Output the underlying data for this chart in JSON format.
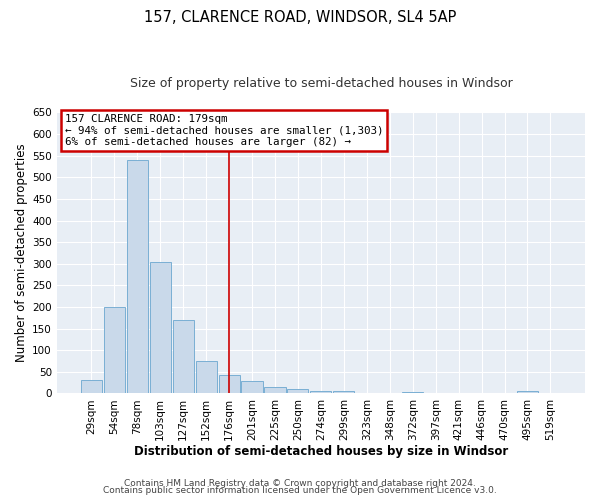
{
  "title": "157, CLARENCE ROAD, WINDSOR, SL4 5AP",
  "subtitle": "Size of property relative to semi-detached houses in Windsor",
  "xlabel": "Distribution of semi-detached houses by size in Windsor",
  "ylabel": "Number of semi-detached properties",
  "bar_labels": [
    "29sqm",
    "54sqm",
    "78sqm",
    "103sqm",
    "127sqm",
    "152sqm",
    "176sqm",
    "201sqm",
    "225sqm",
    "250sqm",
    "274sqm",
    "299sqm",
    "323sqm",
    "348sqm",
    "372sqm",
    "397sqm",
    "421sqm",
    "446sqm",
    "470sqm",
    "495sqm",
    "519sqm"
  ],
  "bar_values": [
    30,
    200,
    540,
    305,
    170,
    75,
    42,
    28,
    15,
    10,
    6,
    5,
    0,
    0,
    4,
    0,
    0,
    0,
    0,
    5,
    0
  ],
  "bar_color": "#c9d9ea",
  "bar_edgecolor": "#7aafd4",
  "ylim": [
    0,
    650
  ],
  "yticks": [
    0,
    50,
    100,
    150,
    200,
    250,
    300,
    350,
    400,
    450,
    500,
    550,
    600,
    650
  ],
  "vline_x_index": 6,
  "vline_color": "#cc0000",
  "annotation_title": "157 CLARENCE ROAD: 179sqm",
  "annotation_line1": "← 94% of semi-detached houses are smaller (1,303)",
  "annotation_line2": "6% of semi-detached houses are larger (82) →",
  "annotation_box_color": "#cc0000",
  "footer1": "Contains HM Land Registry data © Crown copyright and database right 2024.",
  "footer2": "Contains public sector information licensed under the Open Government Licence v3.0.",
  "bg_color": "#ffffff",
  "plot_bg_color": "#e8eef5",
  "grid_color": "#ffffff",
  "title_fontsize": 10.5,
  "subtitle_fontsize": 9,
  "axis_label_fontsize": 8.5,
  "tick_fontsize": 7.5,
  "footer_fontsize": 6.5
}
